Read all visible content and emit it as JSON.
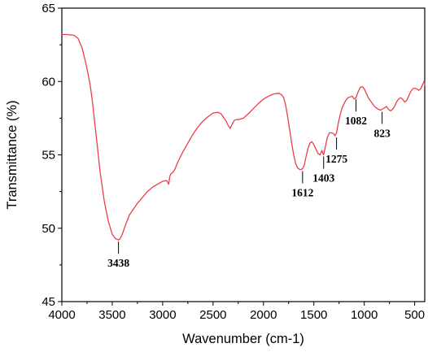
{
  "chart_data": {
    "type": "line",
    "title": "",
    "xlabel": "Wavenumber (cm-1)",
    "ylabel": "Transmittance (%)",
    "xlim": [
      4000,
      400
    ],
    "ylim": [
      45,
      65
    ],
    "x_reversed": true,
    "x_ticks": [
      "4000",
      "3500",
      "3000",
      "2500",
      "2000",
      "1500",
      "1000",
      "500"
    ],
    "y_ticks": [
      "45",
      "50",
      "55",
      "60",
      "65"
    ],
    "grid": false,
    "line_color": "#e8404a",
    "series": [
      {
        "name": "",
        "x": [
          4000,
          3950,
          3880,
          3840,
          3800,
          3760,
          3720,
          3700,
          3680,
          3650,
          3620,
          3580,
          3540,
          3500,
          3470,
          3450,
          3438,
          3420,
          3400,
          3370,
          3330,
          3290,
          3250,
          3200,
          3150,
          3100,
          3050,
          3000,
          2960,
          2940,
          2930,
          2920,
          2900,
          2880,
          2850,
          2800,
          2750,
          2700,
          2650,
          2600,
          2550,
          2500,
          2450,
          2420,
          2400,
          2370,
          2350,
          2330,
          2310,
          2290,
          2270,
          2250,
          2200,
          2150,
          2100,
          2050,
          2000,
          1950,
          1900,
          1850,
          1820,
          1800,
          1780,
          1760,
          1740,
          1720,
          1700,
          1680,
          1660,
          1640,
          1625,
          1612,
          1595,
          1580,
          1560,
          1540,
          1520,
          1500,
          1480,
          1460,
          1440,
          1420,
          1403,
          1385,
          1365,
          1345,
          1325,
          1305,
          1290,
          1275,
          1260,
          1240,
          1220,
          1200,
          1180,
          1160,
          1140,
          1120,
          1100,
          1082,
          1060,
          1040,
          1020,
          1000,
          980,
          960,
          940,
          920,
          900,
          880,
          860,
          840,
          823,
          800,
          780,
          760,
          740,
          720,
          700,
          680,
          660,
          640,
          620,
          600,
          580,
          560,
          540,
          520,
          500,
          480,
          460,
          440,
          420,
          405,
          400
        ],
        "y": [
          63.2,
          63.2,
          63.15,
          62.95,
          62.3,
          61.2,
          59.8,
          58.8,
          57.6,
          55.7,
          53.8,
          51.9,
          50.5,
          49.6,
          49.3,
          49.25,
          49.2,
          49.3,
          49.6,
          50.2,
          50.9,
          51.3,
          51.7,
          52.1,
          52.5,
          52.8,
          53.0,
          53.2,
          53.25,
          53.0,
          53.5,
          53.7,
          53.8,
          54.0,
          54.5,
          55.2,
          55.8,
          56.4,
          56.9,
          57.3,
          57.6,
          57.85,
          57.9,
          57.8,
          57.6,
          57.3,
          57.0,
          56.8,
          57.1,
          57.35,
          57.4,
          57.4,
          57.5,
          57.8,
          58.15,
          58.5,
          58.8,
          59.0,
          59.15,
          59.2,
          59.1,
          58.9,
          58.4,
          57.6,
          56.7,
          55.8,
          55.0,
          54.4,
          54.1,
          54.0,
          54.0,
          54.05,
          54.3,
          54.8,
          55.4,
          55.8,
          55.9,
          55.7,
          55.4,
          55.1,
          55.0,
          55.3,
          55.0,
          55.6,
          56.2,
          56.5,
          56.5,
          56.45,
          56.3,
          56.5,
          57.1,
          57.7,
          58.2,
          58.5,
          58.75,
          58.9,
          58.95,
          59.0,
          58.8,
          58.9,
          59.3,
          59.6,
          59.65,
          59.5,
          59.2,
          58.9,
          58.7,
          58.5,
          58.3,
          58.2,
          58.1,
          58.05,
          58.1,
          58.2,
          58.3,
          58.1,
          58.0,
          58.1,
          58.3,
          58.6,
          58.8,
          58.9,
          58.8,
          58.6,
          58.7,
          59.0,
          59.3,
          59.5,
          59.55,
          59.5,
          59.4,
          59.5,
          59.8,
          60.05,
          59.7
        ]
      }
    ],
    "annotations": [
      {
        "label": "3438",
        "x": 3438,
        "y": 49.2
      },
      {
        "label": "1612",
        "x": 1612,
        "y": 54.0
      },
      {
        "label": "1403",
        "x": 1403,
        "y": 55.0
      },
      {
        "label": "1275",
        "x": 1275,
        "y": 56.3
      },
      {
        "label": "1082",
        "x": 1082,
        "y": 58.9
      },
      {
        "label": "823",
        "x": 823,
        "y": 58.05
      }
    ]
  }
}
